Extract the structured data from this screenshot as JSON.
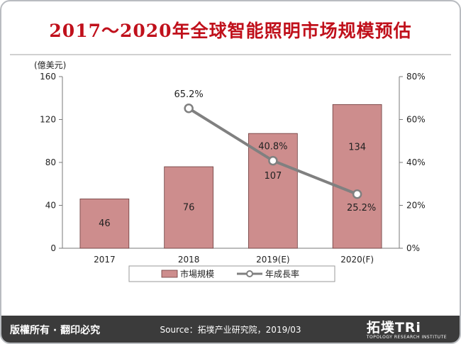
{
  "title": "2017～2020年全球智能照明市场规模预估",
  "footer": {
    "rights": "版權所有 · 翻印必究",
    "source": "Source：拓墣产业研究院，2019/03",
    "logo_main": "拓墣TRi",
    "logo_sub": "TOPOLOGY RESEARCH INSTITUTE"
  },
  "colors": {
    "bar": "#cd8d8d",
    "bar_edge": "#6b3b3b",
    "line": "#808080",
    "title": "#c0101b"
  },
  "chart_data": {
    "type": "bar+line",
    "categories": [
      "2017",
      "2018",
      "2019(E)",
      "2020(F)"
    ],
    "series": [
      {
        "name": "市場規模",
        "type": "bar",
        "axis": "left",
        "values": [
          46,
          76,
          107,
          134
        ]
      },
      {
        "name": "年成長率",
        "type": "line",
        "axis": "right",
        "values": [
          null,
          65.2,
          40.8,
          25.2
        ]
      }
    ],
    "y_left": {
      "unit_label": "(億美元)",
      "range": [
        0,
        160
      ],
      "ticks": [
        "0",
        "40",
        "80",
        "120",
        "160"
      ]
    },
    "y_right": {
      "range": [
        0,
        80
      ],
      "ticks": [
        "0%",
        "20%",
        "40%",
        "60%",
        "80%"
      ]
    },
    "bar_labels": [
      "46",
      "76",
      "107",
      "134"
    ],
    "line_labels": [
      "",
      "65.2%",
      "40.8%",
      "25.2%"
    ],
    "legend_position": "bottom",
    "grid": false
  }
}
